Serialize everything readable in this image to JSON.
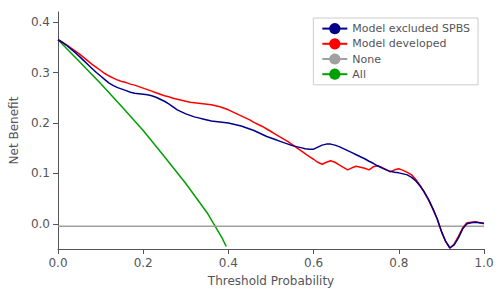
{
  "chart_data": {
    "type": "line",
    "xlabel": "Threshold Probability",
    "ylabel": "Net Benefit",
    "xlim": [
      0.0,
      1.0
    ],
    "ylim": [
      -0.05,
      0.42
    ],
    "xticks": [
      {
        "value": 0.0,
        "label": "0.0"
      },
      0.2,
      0.4,
      0.6,
      0.8,
      {
        "value": 1.0,
        "label": "1.0"
      }
    ],
    "yticks": [
      {
        "value": 0.0,
        "label": "0.0"
      },
      0.1,
      0.2,
      0.3,
      0.4
    ],
    "grid": false,
    "legend": "upper right",
    "line_style": "solid",
    "series": [
      {
        "name": "Model excluded SPBS",
        "color": "#00008B",
        "x": [
          0.0,
          0.01,
          0.02,
          0.03,
          0.04,
          0.05,
          0.06,
          0.07,
          0.08,
          0.09,
          0.1,
          0.11,
          0.12,
          0.13,
          0.14,
          0.15,
          0.16,
          0.17,
          0.18,
          0.19,
          0.2,
          0.21,
          0.22,
          0.23,
          0.24,
          0.25,
          0.26,
          0.27,
          0.28,
          0.29,
          0.3,
          0.31,
          0.32,
          0.33,
          0.34,
          0.35,
          0.36,
          0.37,
          0.38,
          0.39,
          0.4,
          0.41,
          0.42,
          0.43,
          0.44,
          0.45,
          0.46,
          0.47,
          0.48,
          0.49,
          0.5,
          0.51,
          0.52,
          0.53,
          0.54,
          0.55,
          0.56,
          0.57,
          0.58,
          0.59,
          0.6,
          0.61,
          0.62,
          0.63,
          0.64,
          0.65,
          0.66,
          0.67,
          0.68,
          0.69,
          0.7,
          0.71,
          0.72,
          0.73,
          0.74,
          0.75,
          0.76,
          0.77,
          0.78,
          0.79,
          0.8,
          0.81,
          0.82,
          0.83,
          0.84,
          0.85,
          0.86,
          0.87,
          0.88,
          0.89,
          0.9,
          0.91,
          0.92,
          0.93,
          0.94,
          0.95,
          0.96,
          0.97,
          0.98,
          0.99,
          1.0
        ],
        "values": [
          0.365,
          0.36,
          0.354,
          0.347,
          0.34,
          0.332,
          0.324,
          0.316,
          0.308,
          0.3,
          0.293,
          0.286,
          0.279,
          0.274,
          0.27,
          0.267,
          0.264,
          0.261,
          0.259,
          0.258,
          0.257,
          0.256,
          0.254,
          0.251,
          0.247,
          0.243,
          0.238,
          0.232,
          0.226,
          0.222,
          0.218,
          0.215,
          0.212,
          0.21,
          0.208,
          0.206,
          0.204,
          0.203,
          0.202,
          0.201,
          0.2,
          0.198,
          0.196,
          0.194,
          0.191,
          0.188,
          0.185,
          0.181,
          0.177,
          0.173,
          0.17,
          0.167,
          0.164,
          0.161,
          0.158,
          0.155,
          0.153,
          0.151,
          0.149,
          0.148,
          0.148,
          0.152,
          0.156,
          0.158,
          0.158,
          0.156,
          0.153,
          0.149,
          0.145,
          0.141,
          0.137,
          0.133,
          0.129,
          0.124,
          0.12,
          0.115,
          0.111,
          0.107,
          0.104,
          0.102,
          0.101,
          0.099,
          0.097,
          0.092,
          0.085,
          0.075,
          0.063,
          0.048,
          0.03,
          0.01,
          -0.015,
          -0.035,
          -0.048,
          -0.042,
          -0.028,
          -0.01,
          0.0,
          0.002,
          0.003,
          0.002,
          0.001
        ]
      },
      {
        "name": "Model developed",
        "color": "#FF0000",
        "x": [
          0.0,
          0.01,
          0.02,
          0.03,
          0.04,
          0.05,
          0.06,
          0.07,
          0.08,
          0.09,
          0.1,
          0.11,
          0.12,
          0.13,
          0.14,
          0.15,
          0.16,
          0.17,
          0.18,
          0.19,
          0.2,
          0.21,
          0.22,
          0.23,
          0.24,
          0.25,
          0.26,
          0.27,
          0.28,
          0.29,
          0.3,
          0.31,
          0.32,
          0.33,
          0.34,
          0.35,
          0.36,
          0.37,
          0.38,
          0.39,
          0.4,
          0.41,
          0.42,
          0.43,
          0.44,
          0.45,
          0.46,
          0.47,
          0.48,
          0.49,
          0.5,
          0.51,
          0.52,
          0.53,
          0.54,
          0.55,
          0.56,
          0.57,
          0.58,
          0.59,
          0.6,
          0.61,
          0.62,
          0.63,
          0.64,
          0.65,
          0.66,
          0.67,
          0.68,
          0.69,
          0.7,
          0.71,
          0.72,
          0.73,
          0.74,
          0.75,
          0.76,
          0.77,
          0.78,
          0.79,
          0.8,
          0.81,
          0.82,
          0.83,
          0.84,
          0.85,
          0.86,
          0.87,
          0.88,
          0.89,
          0.9,
          0.91,
          0.92,
          0.93,
          0.94,
          0.95,
          0.96,
          0.97,
          0.98,
          0.99,
          1.0
        ],
        "values": [
          0.365,
          0.36,
          0.355,
          0.349,
          0.343,
          0.337,
          0.33,
          0.323,
          0.316,
          0.31,
          0.304,
          0.298,
          0.293,
          0.289,
          0.285,
          0.282,
          0.28,
          0.277,
          0.275,
          0.272,
          0.269,
          0.266,
          0.263,
          0.26,
          0.257,
          0.254,
          0.252,
          0.249,
          0.247,
          0.245,
          0.243,
          0.241,
          0.24,
          0.239,
          0.238,
          0.237,
          0.236,
          0.234,
          0.232,
          0.229,
          0.226,
          0.222,
          0.218,
          0.214,
          0.21,
          0.206,
          0.201,
          0.197,
          0.193,
          0.188,
          0.183,
          0.178,
          0.173,
          0.168,
          0.163,
          0.157,
          0.151,
          0.145,
          0.139,
          0.133,
          0.128,
          0.122,
          0.118,
          0.122,
          0.125,
          0.122,
          0.117,
          0.112,
          0.107,
          0.111,
          0.114,
          0.112,
          0.11,
          0.107,
          0.113,
          0.115,
          0.112,
          0.108,
          0.103,
          0.107,
          0.109,
          0.106,
          0.102,
          0.097,
          0.088,
          0.076,
          0.062,
          0.047,
          0.029,
          0.01,
          -0.015,
          -0.035,
          -0.048,
          -0.04,
          -0.025,
          -0.008,
          0.002,
          0.003,
          0.004,
          0.002,
          0.0
        ]
      },
      {
        "name": "None",
        "color": "#A0A0A0",
        "x": [
          0.0,
          1.0
        ],
        "values": [
          -0.005,
          -0.005
        ]
      },
      {
        "name": "All",
        "color": "#00A000",
        "x": [
          0.0,
          0.05,
          0.1,
          0.15,
          0.2,
          0.25,
          0.3,
          0.35,
          0.385,
          0.395
        ],
        "values": [
          0.365,
          0.322,
          0.278,
          0.232,
          0.185,
          0.133,
          0.08,
          0.022,
          -0.028,
          -0.045
        ]
      }
    ]
  }
}
